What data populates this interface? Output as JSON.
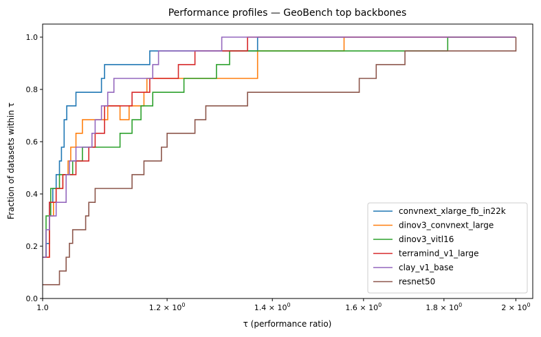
{
  "chart_data": {
    "type": "line",
    "title": "Performance profiles — GeoBench top backbones",
    "xlabel": "τ (performance ratio)",
    "ylabel": "Fraction of datasets within τ",
    "x_scale": "log",
    "xlim": [
      1.0,
      2.05
    ],
    "ylim": [
      0.0,
      1.05
    ],
    "x_ticks": [
      {
        "value": 1.0,
        "label": "1.0"
      },
      {
        "value": 1.2,
        "label": "1.2 × 10^0"
      },
      {
        "value": 1.4,
        "label": "1.4 × 10^0"
      },
      {
        "value": 1.6,
        "label": "1.6 × 10^0"
      },
      {
        "value": 1.8,
        "label": "1.8 × 10^0"
      },
      {
        "value": 2.0,
        "label": "2 × 10^0"
      }
    ],
    "y_ticks": [
      "0.0",
      "0.2",
      "0.4",
      "0.6",
      "0.8",
      "1.0"
    ],
    "legend_position": "lower-right",
    "step": "post",
    "series": [
      {
        "name": "convnext_xlarge_fb_in22k",
        "color": "#1f77b4",
        "x": [
          1.0,
          1.005,
          1.01,
          1.015,
          1.02,
          1.025,
          1.028,
          1.032,
          1.036,
          1.05,
          1.09,
          1.095,
          1.1,
          1.17,
          1.37,
          2.0
        ],
        "y": [
          0.158,
          0.21,
          0.368,
          0.421,
          0.474,
          0.526,
          0.579,
          0.684,
          0.737,
          0.789,
          0.842,
          0.895,
          0.895,
          0.947,
          1.0,
          1.0
        ]
      },
      {
        "name": "dinov3_convnext_large",
        "color": "#ff7f0e",
        "x": [
          1.0,
          1.01,
          1.016,
          1.02,
          1.03,
          1.038,
          1.042,
          1.05,
          1.06,
          1.065,
          1.075,
          1.1,
          1.12,
          1.135,
          1.16,
          1.165,
          1.17,
          1.37,
          1.555,
          2.0
        ],
        "y": [
          0.158,
          0.316,
          0.368,
          0.421,
          0.474,
          0.526,
          0.579,
          0.632,
          0.684,
          0.684,
          0.684,
          0.737,
          0.684,
          0.737,
          0.789,
          0.842,
          0.842,
          0.947,
          1.0,
          1.0
        ]
      },
      {
        "name": "dinov3_vitl16",
        "color": "#2ca02c",
        "x": [
          1.0,
          1.005,
          1.012,
          1.025,
          1.035,
          1.045,
          1.06,
          1.065,
          1.09,
          1.12,
          1.14,
          1.155,
          1.175,
          1.23,
          1.29,
          1.31,
          1.315,
          1.37,
          1.81,
          2.0
        ],
        "y": [
          0.158,
          0.316,
          0.421,
          0.474,
          0.474,
          0.526,
          0.579,
          0.579,
          0.579,
          0.632,
          0.684,
          0.737,
          0.789,
          0.842,
          0.895,
          0.895,
          0.947,
          0.947,
          1.0,
          1.0
        ]
      },
      {
        "name": "terramind_v1_large",
        "color": "#d62728",
        "x": [
          1.0,
          1.01,
          1.02,
          1.03,
          1.05,
          1.07,
          1.08,
          1.095,
          1.14,
          1.17,
          1.18,
          1.22,
          1.25,
          1.27,
          1.33,
          1.35,
          2.0
        ],
        "y": [
          0.158,
          0.368,
          0.421,
          0.474,
          0.526,
          0.579,
          0.632,
          0.737,
          0.789,
          0.842,
          0.842,
          0.895,
          0.947,
          0.947,
          0.947,
          1.0,
          1.0
        ]
      },
      {
        "name": "clay_v1_base",
        "color": "#9467bd",
        "x": [
          1.0,
          1.005,
          1.01,
          1.02,
          1.035,
          1.04,
          1.05,
          1.075,
          1.08,
          1.09,
          1.1,
          1.11,
          1.175,
          1.185,
          1.27,
          1.3,
          2.0
        ],
        "y": [
          0.158,
          0.263,
          0.316,
          0.368,
          0.474,
          0.526,
          0.579,
          0.632,
          0.684,
          0.737,
          0.789,
          0.842,
          0.895,
          0.947,
          0.947,
          1.0,
          1.0
        ]
      },
      {
        "name": "resnet50",
        "color": "#8c564b",
        "x": [
          1.0,
          1.025,
          1.035,
          1.04,
          1.045,
          1.06,
          1.065,
          1.07,
          1.075,
          1.08,
          1.09,
          1.095,
          1.14,
          1.145,
          1.16,
          1.19,
          1.2,
          1.25,
          1.27,
          1.35,
          1.59,
          1.63,
          1.7,
          1.81,
          1.92,
          2.0
        ],
        "y": [
          0.053,
          0.105,
          0.158,
          0.211,
          0.263,
          0.263,
          0.316,
          0.368,
          0.368,
          0.421,
          0.421,
          0.421,
          0.474,
          0.474,
          0.526,
          0.579,
          0.632,
          0.684,
          0.737,
          0.789,
          0.842,
          0.895,
          0.947,
          0.947,
          0.947,
          1.0
        ]
      }
    ]
  }
}
